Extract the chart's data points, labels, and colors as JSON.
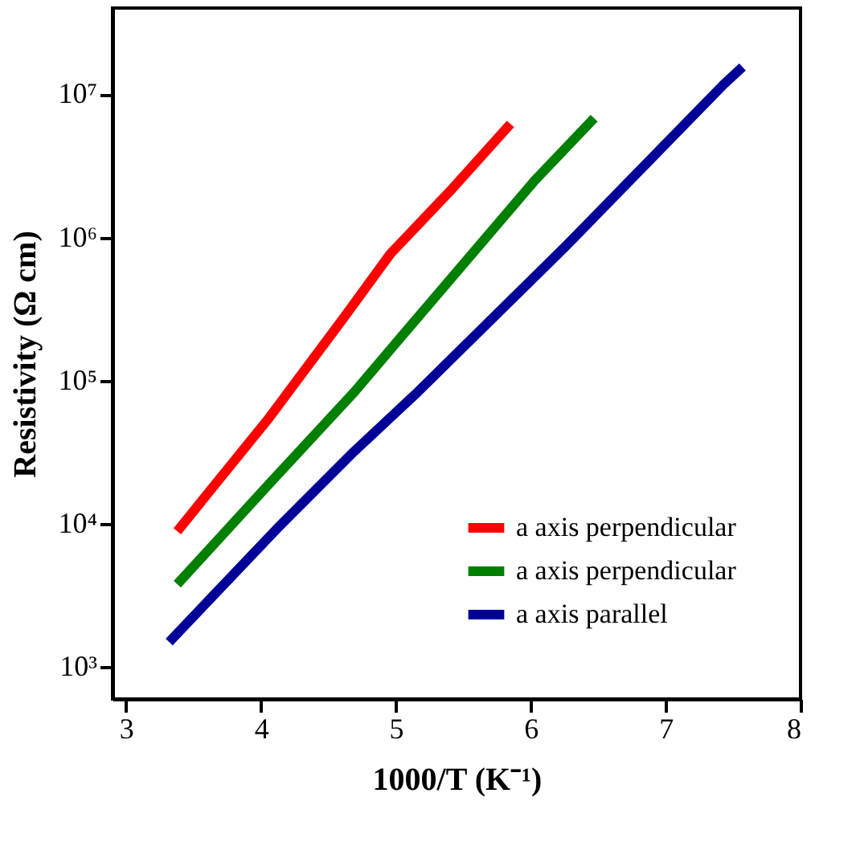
{
  "chart_data": {
    "type": "line",
    "xlabel": "1000/T (K⁻¹)",
    "ylabel": "Resistivity (Ω cm)",
    "log": "y",
    "grid": false,
    "legend": "bottom right",
    "marker": "none",
    "line_style": "solid",
    "xlim": [
      2.9,
      8.0
    ],
    "xticks": [
      3,
      4,
      5,
      6,
      7,
      8
    ],
    "ylim": [
      600,
      40000000
    ],
    "yticks": [
      {
        "value": 1000,
        "label": "10³"
      },
      {
        "value": 10000,
        "label": "10⁴"
      },
      {
        "value": 100000,
        "label": "10⁵"
      },
      {
        "value": 1000000,
        "label": "10⁶"
      },
      {
        "value": 10000000,
        "label": "10⁷"
      }
    ],
    "series": [
      {
        "name": "a axis perpendicular",
        "color": "#ff0000",
        "x": [
          3.38,
          3.7,
          4.06,
          4.62,
          4.96,
          5.4,
          5.85
        ],
        "values": [
          8900,
          21000,
          55000,
          280000,
          770000,
          2100000,
          6200000
        ]
      },
      {
        "name": "a axis perpendicular",
        "color": "#008000",
        "x": [
          3.38,
          4.06,
          4.69,
          5.16,
          6.03,
          6.47
        ],
        "values": [
          3800,
          19000,
          83000,
          275000,
          2500000,
          6800000
        ]
      },
      {
        "name": "a axis parallel",
        "color": "#000099",
        "x": [
          3.32,
          4.12,
          4.69,
          5.16,
          6.26,
          7.43,
          7.57
        ],
        "values": [
          1500,
          9300,
          32000,
          83000,
          870000,
          11700000,
          15500000
        ]
      }
    ]
  }
}
